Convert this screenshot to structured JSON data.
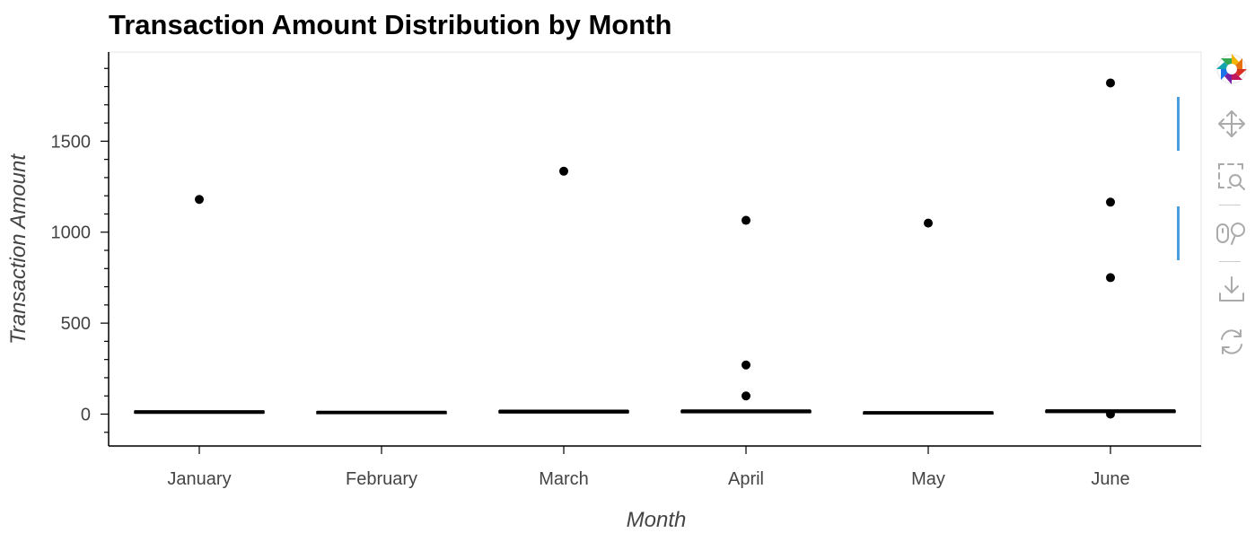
{
  "chart_data": {
    "type": "box",
    "title": "Transaction Amount Distribution by Month",
    "xlabel": "Month",
    "ylabel": "Transaction Amount",
    "ylim": [
      -180,
      1990
    ],
    "yticks": [
      0,
      500,
      1000,
      1500
    ],
    "categories": [
      "January",
      "February",
      "March",
      "April",
      "May",
      "June"
    ],
    "boxes": [
      {
        "category": "January",
        "whisker_low": 5,
        "q1": 8,
        "median": 12,
        "q3": 16,
        "whisker_high": 18,
        "outliers": [
          1180
        ]
      },
      {
        "category": "February",
        "whisker_low": 4,
        "q1": 6,
        "median": 9,
        "q3": 13,
        "whisker_high": 15,
        "outliers": []
      },
      {
        "category": "March",
        "whisker_low": 7,
        "q1": 10,
        "median": 14,
        "q3": 18,
        "whisker_high": 21,
        "outliers": [
          1335
        ]
      },
      {
        "category": "April",
        "whisker_low": 8,
        "q1": 11,
        "median": 15,
        "q3": 19,
        "whisker_high": 22,
        "outliers": [
          1065,
          270,
          100
        ]
      },
      {
        "category": "May",
        "whisker_low": 4,
        "q1": 6,
        "median": 8,
        "q3": 11,
        "whisker_high": 13,
        "outliers": [
          1050
        ]
      },
      {
        "category": "June",
        "whisker_low": 9,
        "q1": 12,
        "median": 16,
        "q3": 20,
        "whisker_high": 23,
        "outliers": [
          1820,
          1165,
          750,
          0
        ]
      }
    ],
    "grid": false,
    "box_fill_color": "#1f77b4",
    "outlier_color": "#000000"
  },
  "toolbar": {
    "tools": [
      {
        "name": "bokeh-logo-icon",
        "active": false
      },
      {
        "name": "pan-icon",
        "active": true
      },
      {
        "name": "box-zoom-icon",
        "active": false
      },
      {
        "name": "wheel-zoom-icon",
        "active": true
      },
      {
        "name": "save-icon",
        "active": false
      },
      {
        "name": "reset-icon",
        "active": false
      }
    ],
    "active_color": "#4a9ede",
    "icon_color": "#aaaaaa"
  }
}
